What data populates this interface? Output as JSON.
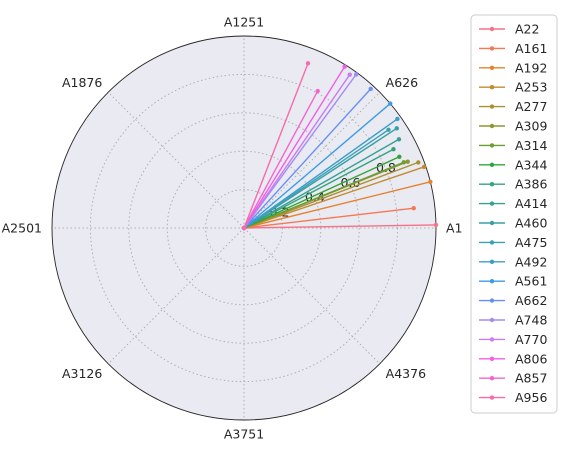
{
  "chart_data": {
    "type": "line",
    "projection": "polar",
    "theta_tick_labels": [
      "A1",
      "A626",
      "A1251",
      "A1876",
      "A2501",
      "A3126",
      "A3751",
      "A4376"
    ],
    "r_tick_labels": [
      "0.2",
      "0.4",
      "0.6",
      "0.8"
    ],
    "rlim": [
      0,
      1.0
    ],
    "grid": true,
    "legend_placement": "outside-right",
    "series": [
      {
        "name": "A22",
        "color": "#f77189",
        "points": [
          [
            0,
            0
          ],
          [
            0.016,
            1.0
          ]
        ]
      },
      {
        "name": "A161",
        "color": "#f67754",
        "points": [
          [
            0,
            0
          ],
          [
            0.116,
            0.89
          ]
        ]
      },
      {
        "name": "A192",
        "color": "#e5822f",
        "points": [
          [
            0,
            0
          ],
          [
            0.243,
            1.0
          ]
        ]
      },
      {
        "name": "A253",
        "color": "#c08b31",
        "points": [
          [
            0,
            0
          ],
          [
            0.327,
            0.99
          ]
        ]
      },
      {
        "name": "A277",
        "color": "#aa9131",
        "points": [
          [
            0,
            0
          ],
          [
            0.36,
            0.97
          ]
        ]
      },
      {
        "name": "A309",
        "color": "#8e9631",
        "points": [
          [
            0,
            0
          ],
          [
            0.385,
            0.92
          ]
        ]
      },
      {
        "name": "A314",
        "color": "#6c9d31",
        "points": [
          [
            0,
            0
          ],
          [
            0.39,
            0.9
          ]
        ]
      },
      {
        "name": "A344",
        "color": "#32a43b",
        "points": [
          [
            0,
            0
          ],
          [
            0.43,
            0.89
          ]
        ]
      },
      {
        "name": "A386",
        "color": "#35a27f",
        "points": [
          [
            0,
            0
          ],
          [
            0.485,
            0.88
          ]
        ]
      },
      {
        "name": "A414",
        "color": "#36a093",
        "points": [
          [
            0,
            0
          ],
          [
            0.52,
            0.93
          ]
        ]
      },
      {
        "name": "A460",
        "color": "#38a0a4",
        "points": [
          [
            0,
            0
          ],
          [
            0.578,
            0.95
          ]
        ]
      },
      {
        "name": "A475",
        "color": "#3aa1b5",
        "points": [
          [
            0,
            0
          ],
          [
            0.597,
            0.91
          ]
        ]
      },
      {
        "name": "A492",
        "color": "#3b9ec9",
        "points": [
          [
            0,
            0
          ],
          [
            0.618,
            0.98
          ]
        ]
      },
      {
        "name": "A561",
        "color": "#3c9be3",
        "points": [
          [
            0,
            0
          ],
          [
            0.705,
            1.0
          ]
        ]
      },
      {
        "name": "A662",
        "color": "#6a8ff4",
        "points": [
          [
            0,
            0
          ],
          [
            0.832,
            0.98
          ]
        ]
      },
      {
        "name": "A748",
        "color": "#a48bf4",
        "points": [
          [
            0,
            0
          ],
          [
            0.94,
            0.99
          ]
        ]
      },
      {
        "name": "A770",
        "color": "#c97cf4",
        "points": [
          [
            0,
            0
          ],
          [
            0.967,
            0.97
          ]
        ]
      },
      {
        "name": "A806",
        "color": "#f25ee7",
        "points": [
          [
            0,
            0
          ],
          [
            1.013,
            0.99
          ]
        ]
      },
      {
        "name": "A857",
        "color": "#f564cc",
        "points": [
          [
            0,
            0
          ],
          [
            1.077,
            0.81
          ]
        ]
      },
      {
        "name": "A956",
        "color": "#f66bad",
        "points": [
          [
            0,
            0
          ],
          [
            1.2,
            0.92
          ]
        ]
      }
    ]
  }
}
